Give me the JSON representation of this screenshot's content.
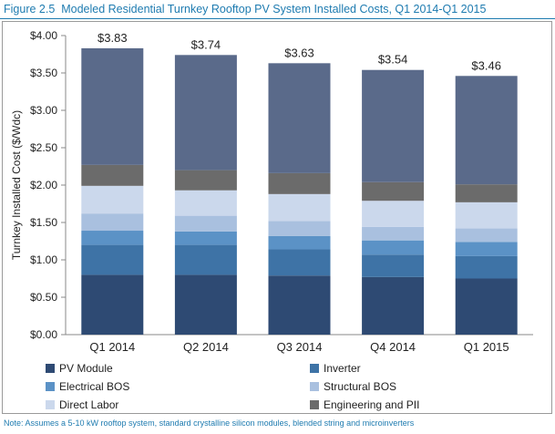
{
  "figure": {
    "label": "Figure 2.5",
    "title": "Modeled Residential Turnkey Rooftop PV System Installed Costs, Q1 2014-Q1 2015",
    "note": "Note: Assumes a 5-10 kW rooftop system, standard crystalline silicon modules, blended string and microinverters"
  },
  "chart_data": {
    "type": "bar",
    "stacked": true,
    "ylabel": "Turnkey Installed Cost ($/Wdc)",
    "ylim": [
      0,
      4
    ],
    "yticks": [
      "$0.00",
      "$0.50",
      "$1.00",
      "$1.50",
      "$2.00",
      "$2.50",
      "$3.00",
      "$3.50",
      "$4.00"
    ],
    "categories": [
      "Q1 2014",
      "Q2 2014",
      "Q3 2014",
      "Q4 2014",
      "Q1 2015"
    ],
    "totals_labels": [
      "$3.83",
      "$3.74",
      "$3.63",
      "$3.54",
      "$3.46"
    ],
    "totals": [
      3.83,
      3.74,
      3.63,
      3.54,
      3.46
    ],
    "series": [
      {
        "name": "PV Module",
        "color": "#2e4a73",
        "values": [
          0.8,
          0.8,
          0.79,
          0.77,
          0.75
        ]
      },
      {
        "name": "Inverter",
        "color": "#3e73a6",
        "values": [
          0.4,
          0.4,
          0.35,
          0.3,
          0.3
        ]
      },
      {
        "name": "Electrical BOS",
        "color": "#5b92c6",
        "values": [
          0.19,
          0.18,
          0.18,
          0.19,
          0.19
        ]
      },
      {
        "name": "Structural BOS",
        "color": "#a9c0df",
        "values": [
          0.23,
          0.21,
          0.2,
          0.18,
          0.18
        ]
      },
      {
        "name": "Direct Labor",
        "color": "#cbd8ec",
        "values": [
          0.37,
          0.34,
          0.36,
          0.35,
          0.35
        ]
      },
      {
        "name": "Engineering and PII",
        "color": "#6b6b6b",
        "values": [
          0.28,
          0.27,
          0.28,
          0.25,
          0.24
        ]
      },
      {
        "name": "",
        "color": "#5a6a8a",
        "values": [
          1.56,
          1.54,
          1.47,
          1.5,
          1.45
        ]
      }
    ],
    "legend_position": "bottom",
    "grid": false
  }
}
